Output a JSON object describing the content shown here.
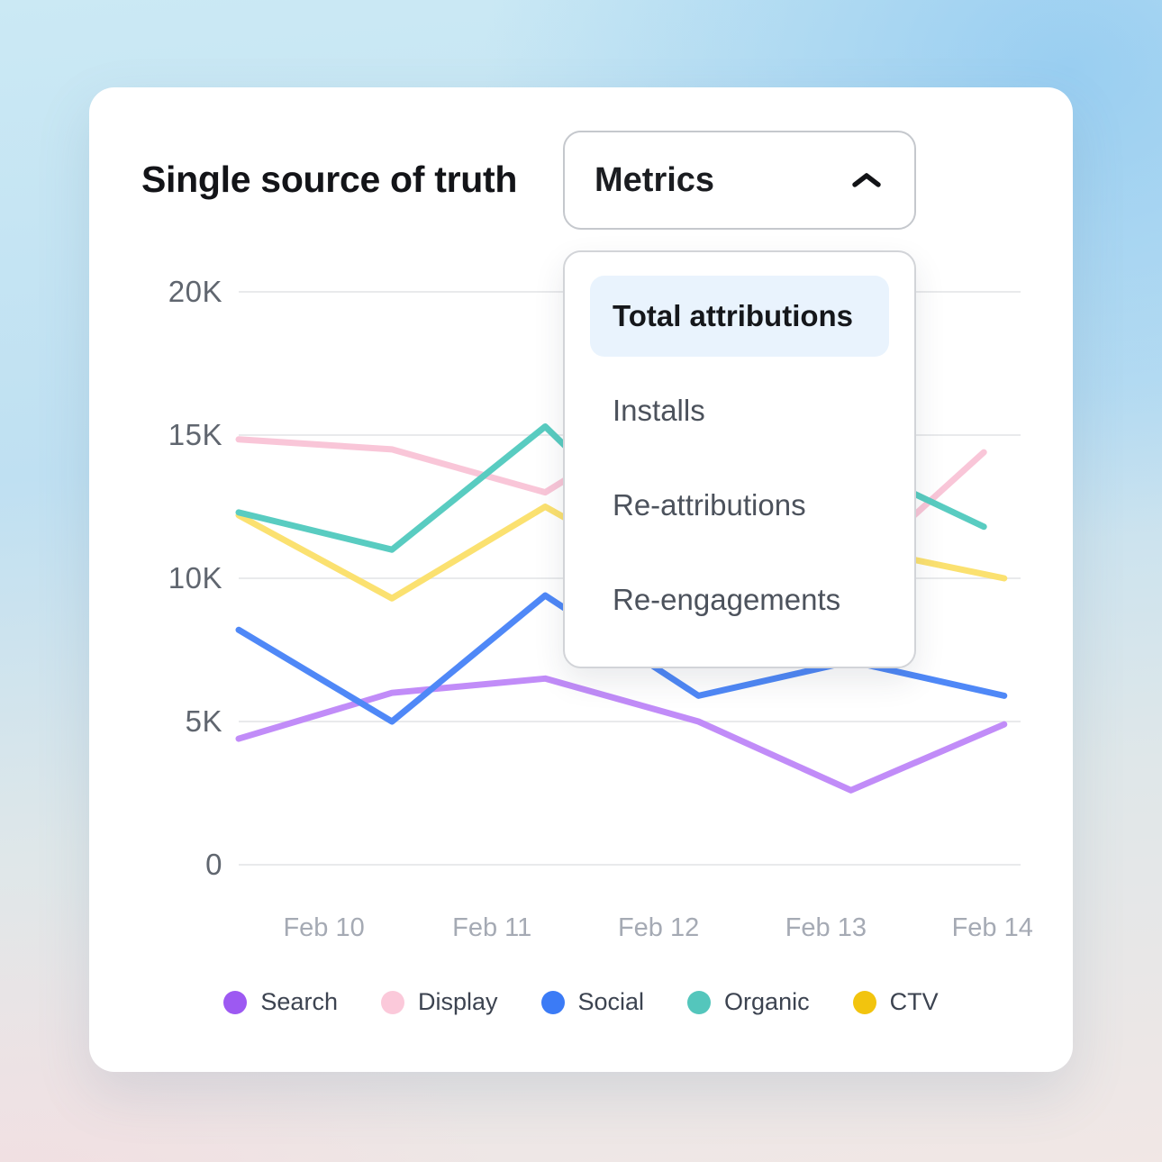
{
  "header": {
    "title": "Single source of truth",
    "metrics_button_label": "Metrics",
    "metrics_button_icon": "chevron-up-icon"
  },
  "dropdown_menu": {
    "items": [
      {
        "label": "Total attributions",
        "selected": true
      },
      {
        "label": "Installs",
        "selected": false
      },
      {
        "label": "Re-attributions",
        "selected": false
      },
      {
        "label": "Re-engagements",
        "selected": false
      }
    ],
    "selected_highlight_color": "#e9f3fd"
  },
  "chart_data": {
    "type": "line",
    "title": "Single source of truth",
    "x_labels": [
      "Feb 10",
      "Feb 11",
      "Feb 12",
      "Feb 13",
      "Feb 14"
    ],
    "y_ticks": [
      {
        "label": "0",
        "value": 0
      },
      {
        "label": "5K",
        "value": 5000
      },
      {
        "label": "10K",
        "value": 10000
      },
      {
        "label": "15K",
        "value": 15000
      },
      {
        "label": "20K",
        "value": 20000
      }
    ],
    "ylim": [
      0,
      20000
    ],
    "grid": "horizontal",
    "legend_position": "bottom",
    "note": "values at points 4-5 of Display, Organic, Social partly occluded by open dropdown; estimated from visible slopes",
    "series": [
      {
        "name": "Search",
        "line_color": "#c18cf8",
        "dot_color": "#9d59f2",
        "x_fractions": [
          0,
          0.196,
          0.392,
          0.588,
          0.783,
          0.979
        ],
        "values": [
          4400,
          6000,
          6500,
          5000,
          2600,
          4900
        ]
      },
      {
        "name": "Display",
        "line_color": "#f9c6d8",
        "dot_color": "#fbc9da",
        "x_fractions": [
          0,
          0.196,
          0.392,
          0.588,
          0.783,
          0.953
        ],
        "values": [
          14850,
          14500,
          13000,
          16300,
          10200,
          14400
        ]
      },
      {
        "name": "Social",
        "line_color": "#4f88f7",
        "dot_color": "#3b7bf6",
        "x_fractions": [
          0,
          0.196,
          0.392,
          0.588,
          0.783,
          0.979
        ],
        "values": [
          8200,
          5000,
          9400,
          5900,
          7100,
          5900
        ]
      },
      {
        "name": "Organic",
        "line_color": "#59ccc1",
        "dot_color": "#54c6bc",
        "x_fractions": [
          0,
          0.196,
          0.392,
          0.588,
          0.783,
          0.953
        ],
        "values": [
          12300,
          11000,
          15300,
          10100,
          14000,
          11800
        ]
      },
      {
        "name": "CTV",
        "line_color": "#fbe170",
        "dot_color": "#f2c40e",
        "x_fractions": [
          0,
          0.196,
          0.392,
          0.588,
          0.783,
          0.979
        ],
        "values": [
          12200,
          9300,
          12500,
          9500,
          11100,
          10000
        ]
      }
    ]
  }
}
